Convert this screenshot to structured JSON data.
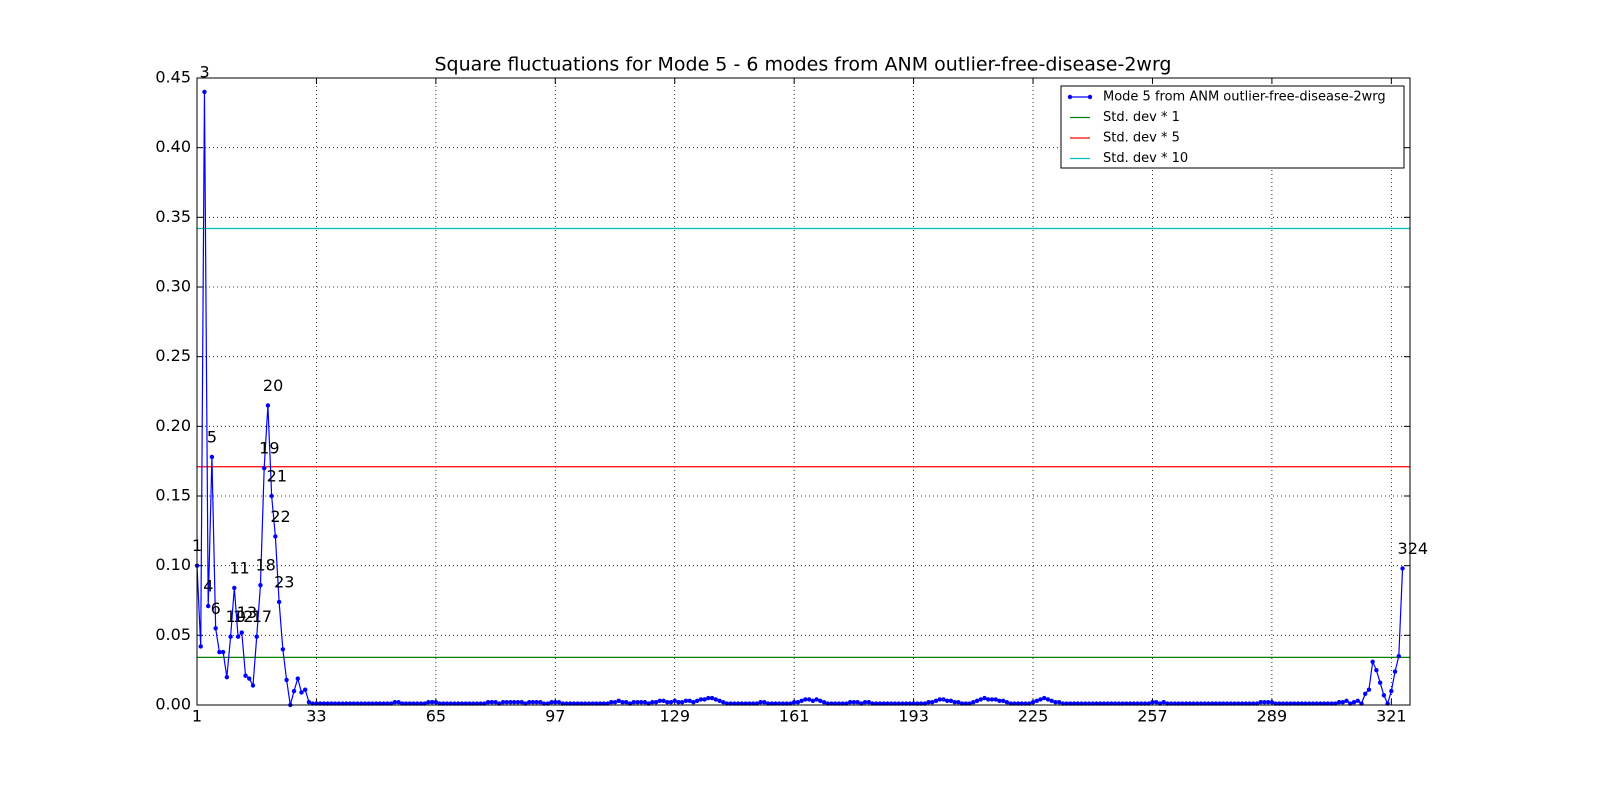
{
  "chart_data": {
    "type": "line",
    "title": "Square fluctuations for Mode 5 - 6 modes from ANM outlier-free-disease-2wrg",
    "xlim": [
      1,
      326
    ],
    "ylim": [
      0,
      0.45
    ],
    "xticks": [
      1,
      33,
      65,
      97,
      129,
      161,
      193,
      225,
      257,
      289,
      321
    ],
    "yticks": [
      {
        "value": 0,
        "label": "0.00"
      },
      {
        "value": 0.05,
        "label": "0.05"
      },
      {
        "value": 0.1,
        "label": "0.10"
      },
      {
        "value": 0.15,
        "label": "0.15"
      },
      {
        "value": 0.2,
        "label": "0.20"
      },
      {
        "value": 0.25,
        "label": "0.25"
      },
      {
        "value": 0.3,
        "label": "0.30"
      },
      {
        "value": 0.35,
        "label": "0.35"
      },
      {
        "value": 0.4,
        "label": "0.40"
      },
      {
        "value": 0.45,
        "label": "0.45"
      }
    ],
    "grid": true,
    "legend": "upper right",
    "series": [
      {
        "name": "Mode 5 from ANM outlier-free-disease-2wrg",
        "color": "#0000ff",
        "x": [
          1,
          2,
          3,
          4,
          5,
          6,
          7,
          8,
          9,
          10,
          11,
          12,
          13,
          14,
          15,
          16,
          17,
          18,
          19,
          20,
          21,
          22,
          23,
          24,
          25,
          26,
          27,
          28,
          29,
          30,
          31,
          32,
          33,
          34,
          35,
          36,
          37,
          38,
          39,
          40,
          41,
          42,
          43,
          44,
          45,
          46,
          47,
          48,
          49,
          50,
          51,
          52,
          53,
          54,
          55,
          56,
          57,
          58,
          59,
          60,
          61,
          62,
          63,
          64,
          65,
          66,
          67,
          68,
          69,
          70,
          71,
          72,
          73,
          74,
          75,
          76,
          77,
          78,
          79,
          80,
          81,
          82,
          83,
          84,
          85,
          86,
          87,
          88,
          89,
          90,
          91,
          92,
          93,
          94,
          95,
          96,
          97,
          98,
          99,
          100,
          101,
          102,
          103,
          104,
          105,
          106,
          107,
          108,
          109,
          110,
          111,
          112,
          113,
          114,
          115,
          116,
          117,
          118,
          119,
          120,
          121,
          122,
          123,
          124,
          125,
          126,
          127,
          128,
          129,
          130,
          131,
          132,
          133,
          134,
          135,
          136,
          137,
          138,
          139,
          140,
          141,
          142,
          143,
          144,
          145,
          146,
          147,
          148,
          149,
          150,
          151,
          152,
          153,
          154,
          155,
          156,
          157,
          158,
          159,
          160,
          161,
          162,
          163,
          164,
          165,
          166,
          167,
          168,
          169,
          170,
          171,
          172,
          173,
          174,
          175,
          176,
          177,
          178,
          179,
          180,
          181,
          182,
          183,
          184,
          185,
          186,
          187,
          188,
          189,
          190,
          191,
          192,
          193,
          194,
          195,
          196,
          197,
          198,
          199,
          200,
          201,
          202,
          203,
          204,
          205,
          206,
          207,
          208,
          209,
          210,
          211,
          212,
          213,
          214,
          215,
          216,
          217,
          218,
          219,
          220,
          221,
          222,
          223,
          224,
          225,
          226,
          227,
          228,
          229,
          230,
          231,
          232,
          233,
          234,
          235,
          236,
          237,
          238,
          239,
          240,
          241,
          242,
          243,
          244,
          245,
          246,
          247,
          248,
          249,
          250,
          251,
          252,
          253,
          254,
          255,
          256,
          257,
          258,
          259,
          260,
          261,
          262,
          263,
          264,
          265,
          266,
          267,
          268,
          269,
          270,
          271,
          272,
          273,
          274,
          275,
          276,
          277,
          278,
          279,
          280,
          281,
          282,
          283,
          284,
          285,
          286,
          287,
          288,
          289,
          290,
          291,
          292,
          293,
          294,
          295,
          296,
          297,
          298,
          299,
          300,
          301,
          302,
          303,
          304,
          305,
          306,
          307,
          308,
          309,
          310,
          311,
          312,
          313,
          314,
          315,
          316,
          317,
          318,
          319,
          320,
          321,
          322,
          323,
          324
        ],
        "values": [
          0.1,
          0.042,
          0.44,
          0.071,
          0.178,
          0.055,
          0.038,
          0.038,
          0.02,
          0.049,
          0.084,
          0.049,
          0.052,
          0.021,
          0.019,
          0.014,
          0.049,
          0.086,
          0.17,
          0.215,
          0.15,
          0.121,
          0.074,
          0.04,
          0.018,
          0,
          0.01,
          0.019,
          0.009,
          0.011,
          0.002,
          0.001,
          0.001,
          0.001,
          0.001,
          0.001,
          0.001,
          0.001,
          0.001,
          0.001,
          0.001,
          0.001,
          0.001,
          0.001,
          0.001,
          0.001,
          0.001,
          0.001,
          0.001,
          0.001,
          0.001,
          0.001,
          0.001,
          0.002,
          0.002,
          0.001,
          0.001,
          0.001,
          0.001,
          0.001,
          0.001,
          0.001,
          0.002,
          0.002,
          0.002,
          0.001,
          0.001,
          0.001,
          0.001,
          0.001,
          0.001,
          0.001,
          0.001,
          0.001,
          0.001,
          0.001,
          0.001,
          0.001,
          0.002,
          0.002,
          0.002,
          0.001,
          0.002,
          0.002,
          0.002,
          0.002,
          0.002,
          0.002,
          0.001,
          0.002,
          0.002,
          0.002,
          0.002,
          0.001,
          0.001,
          0.002,
          0.002,
          0.002,
          0.001,
          0.001,
          0.001,
          0.001,
          0.001,
          0.001,
          0.001,
          0.001,
          0.001,
          0.001,
          0.001,
          0.001,
          0.001,
          0.002,
          0.002,
          0.003,
          0.002,
          0.002,
          0.001,
          0.002,
          0.002,
          0.002,
          0.002,
          0.001,
          0.002,
          0.002,
          0.003,
          0.003,
          0.002,
          0.002,
          0.003,
          0.002,
          0.002,
          0.003,
          0.003,
          0.002,
          0.003,
          0.004,
          0.004,
          0.005,
          0.005,
          0.004,
          0.003,
          0.002,
          0.001,
          0.001,
          0.001,
          0.001,
          0.001,
          0.001,
          0.001,
          0.001,
          0.001,
          0.002,
          0.002,
          0.001,
          0.001,
          0.001,
          0.001,
          0.001,
          0.001,
          0.001,
          0.002,
          0.002,
          0.003,
          0.004,
          0.004,
          0.003,
          0.004,
          0.003,
          0.002,
          0.001,
          0.001,
          0.001,
          0.001,
          0.001,
          0.001,
          0.002,
          0.002,
          0.002,
          0.001,
          0.002,
          0.002,
          0.001,
          0.001,
          0.001,
          0.001,
          0.001,
          0.001,
          0.001,
          0.001,
          0.001,
          0.001,
          0.001,
          0.001,
          0.001,
          0.001,
          0.001,
          0.002,
          0.002,
          0.003,
          0.004,
          0.004,
          0.003,
          0.003,
          0.002,
          0.002,
          0.001,
          0.001,
          0.001,
          0.002,
          0.003,
          0.004,
          0.005,
          0.004,
          0.004,
          0.004,
          0.003,
          0.003,
          0.002,
          0.001,
          0.001,
          0.001,
          0.001,
          0.001,
          0.001,
          0.002,
          0.003,
          0.004,
          0.005,
          0.004,
          0.003,
          0.002,
          0.002,
          0.001,
          0.001,
          0.001,
          0.001,
          0.001,
          0.001,
          0.001,
          0.001,
          0.001,
          0.001,
          0.001,
          0.001,
          0.001,
          0.001,
          0.001,
          0.001,
          0.001,
          0.001,
          0.001,
          0.001,
          0.001,
          0.001,
          0.001,
          0.001,
          0.002,
          0.002,
          0.001,
          0.002,
          0.001,
          0.001,
          0.001,
          0.001,
          0.001,
          0.001,
          0.001,
          0.001,
          0.001,
          0.001,
          0.001,
          0.001,
          0.001,
          0.001,
          0.001,
          0.001,
          0.001,
          0.001,
          0.001,
          0.001,
          0.001,
          0.001,
          0.001,
          0.001,
          0.001,
          0.002,
          0.002,
          0.002,
          0.002,
          0.001,
          0.001,
          0.001,
          0.001,
          0.001,
          0.001,
          0.001,
          0.001,
          0.001,
          0.001,
          0.001,
          0.001,
          0.001,
          0.001,
          0.001,
          0.001,
          0.001,
          0.002,
          0.002,
          0.003,
          0.001,
          0.002,
          0.003,
          0.001,
          0.008,
          0.011,
          0.031,
          0.025,
          0.016,
          0.007,
          0.001,
          0.01,
          0.024,
          0.035,
          0.098
        ]
      }
    ],
    "hlines": [
      {
        "name": "Std. dev * 1",
        "color": "#008000",
        "y": 0.0342
      },
      {
        "name": "Std. dev * 5",
        "color": "#ff0000",
        "y": 0.171
      },
      {
        "name": "Std. dev * 10",
        "color": "#00bfbf",
        "y": 0.342
      }
    ],
    "annotations": [
      {
        "text": "1",
        "x": 1
      },
      {
        "text": "3",
        "x": 3
      },
      {
        "text": "4",
        "x": 4
      },
      {
        "text": "5",
        "x": 5
      },
      {
        "text": "6",
        "x": 6
      },
      {
        "text": "10",
        "x": 10
      },
      {
        "text": "11",
        "x": 11
      },
      {
        "text": "12",
        "x": 12
      },
      {
        "text": "13",
        "x": 13
      },
      {
        "text": "17",
        "x": 17
      },
      {
        "text": "18",
        "x": 18
      },
      {
        "text": "19",
        "x": 19
      },
      {
        "text": "20",
        "x": 20
      },
      {
        "text": "21",
        "x": 21
      },
      {
        "text": "22",
        "x": 22
      },
      {
        "text": "23",
        "x": 23
      },
      {
        "text": "324",
        "x": 324
      }
    ]
  }
}
